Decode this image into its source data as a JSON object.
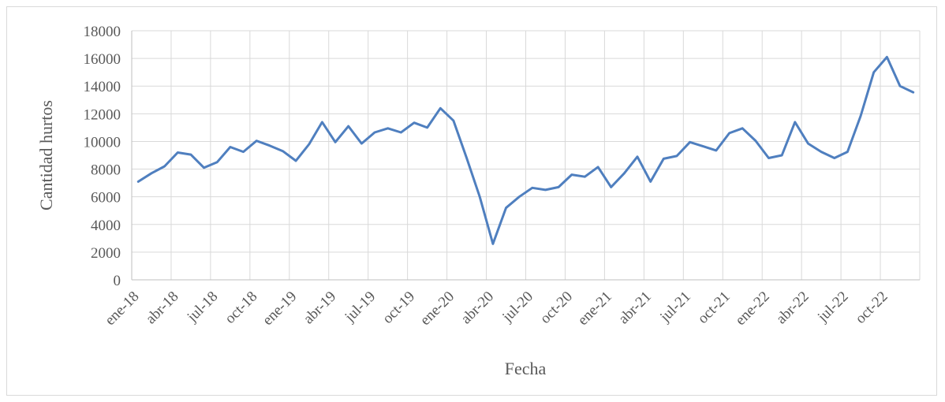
{
  "chart_data": {
    "type": "line",
    "xlabel": "Fecha",
    "ylabel": "Cantidad hurtos",
    "ylim": [
      0,
      18000
    ],
    "ytick_step": 2000,
    "grid": true,
    "x_tick_labels": [
      "ene-18",
      "abr-18",
      "jul-18",
      "oct-18",
      "ene-19",
      "abr-19",
      "jul-19",
      "oct-19",
      "ene-20",
      "abr-20",
      "jul-20",
      "oct-20",
      "ene-21",
      "abr-21",
      "jul-21",
      "oct-21",
      "ene-22",
      "abr-22",
      "jul-22",
      "oct-22"
    ],
    "series": [
      {
        "color": "#4f7fbf",
        "values": [
          7100,
          7700,
          8200,
          9200,
          9050,
          8100,
          8500,
          9600,
          9250,
          10050,
          9700,
          9300,
          8600,
          9800,
          11400,
          9950,
          11100,
          9850,
          10650,
          10950,
          10650,
          11350,
          11000,
          12400,
          11500,
          8800,
          6000,
          2600,
          5200,
          6000,
          6650,
          6500,
          6700,
          7600,
          7450,
          8150,
          6700,
          7700,
          8900,
          7100,
          8750,
          8950,
          9950,
          9650,
          9350,
          10600,
          10950,
          10050,
          8800,
          9000,
          11400,
          9850,
          9250,
          8800,
          9250,
          11850,
          15000,
          16100,
          14000,
          13550
        ]
      }
    ]
  }
}
